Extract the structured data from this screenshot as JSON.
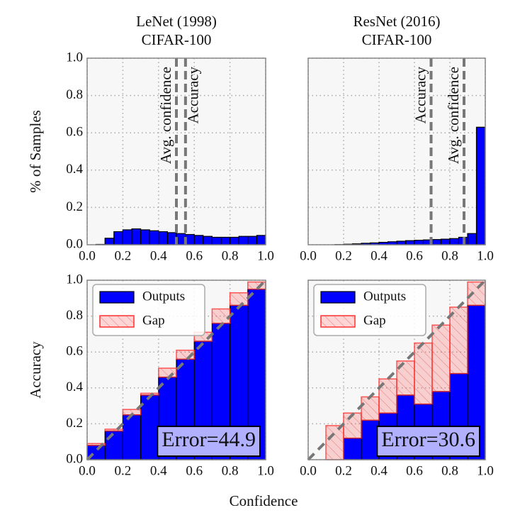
{
  "chart_data": [
    {
      "type": "histogram",
      "title": [
        "LeNet (1998)",
        "CIFAR-100"
      ],
      "ylabel": "% of Samples",
      "bins": [
        0,
        0.05,
        0.1,
        0.15,
        0.2,
        0.25,
        0.3,
        0.35,
        0.4,
        0.45,
        0.5,
        0.55,
        0.6,
        0.65,
        0.7,
        0.75,
        0.8,
        0.85,
        0.9,
        0.95,
        1
      ],
      "values": [
        0,
        0.002,
        0.035,
        0.07,
        0.08,
        0.085,
        0.08,
        0.075,
        0.07,
        0.065,
        0.06,
        0.055,
        0.05,
        0.045,
        0.04,
        0.04,
        0.04,
        0.045,
        0.045,
        0.05
      ],
      "color": "#0000ff",
      "vlines": [
        {
          "label": "Avg. confidence",
          "value": 0.5
        },
        {
          "label": "Accuracy",
          "value": 0.551
        }
      ],
      "xlim": [
        0,
        1
      ],
      "ylim": [
        0,
        1
      ],
      "xticks": [
        {
          "value": 0,
          "label": "0.0"
        },
        0.2,
        0.4,
        0.6,
        0.8,
        {
          "value": 1,
          "label": "1.0"
        }
      ],
      "yticks": [
        {
          "value": 0,
          "label": "0.0"
        },
        0.2,
        0.4,
        0.6,
        0.8,
        {
          "value": 1,
          "label": "1.0"
        }
      ],
      "show_ytick_labels": true,
      "grid": true
    },
    {
      "type": "histogram",
      "title": [
        "ResNet (2016)",
        "CIFAR-100"
      ],
      "bins": [
        0,
        0.05,
        0.1,
        0.15,
        0.2,
        0.25,
        0.3,
        0.35,
        0.4,
        0.45,
        0.5,
        0.55,
        0.6,
        0.65,
        0.7,
        0.75,
        0.8,
        0.85,
        0.9,
        0.95,
        1
      ],
      "values": [
        0,
        0,
        0,
        0.001,
        0.003,
        0.005,
        0.008,
        0.01,
        0.013,
        0.016,
        0.019,
        0.022,
        0.024,
        0.026,
        0.028,
        0.03,
        0.033,
        0.04,
        0.06,
        0.63
      ],
      "color": "#0000ff",
      "vlines": [
        {
          "label": "Accuracy",
          "value": 0.694
        },
        {
          "label": "Avg. confidence",
          "value": 0.88
        }
      ],
      "xlim": [
        0,
        1
      ],
      "ylim": [
        0,
        1
      ],
      "xticks": [
        {
          "value": 0,
          "label": "0.0"
        },
        0.2,
        0.4,
        0.6,
        0.8,
        {
          "value": 1,
          "label": "1.0"
        }
      ],
      "yticks": [
        0,
        0.2,
        0.4,
        0.6,
        0.8,
        1
      ],
      "show_ytick_labels": false,
      "grid": true
    },
    {
      "type": "stacked_histogram",
      "ylabel": "Accuracy",
      "bins": [
        0,
        0.1,
        0.2,
        0.3,
        0.4,
        0.5,
        0.6,
        0.7,
        0.8,
        0.9,
        1
      ],
      "series": [
        {
          "name": "Outputs",
          "color": "#0000ff",
          "values": [
            0.08,
            0.16,
            0.25,
            0.36,
            0.46,
            0.56,
            0.66,
            0.76,
            0.86,
            0.95
          ]
        },
        {
          "name": "Gap",
          "color": "#ff3030",
          "values": [
            0.01,
            0.01,
            0.03,
            0.01,
            0.05,
            0.05,
            0.05,
            0.08,
            0.07,
            0.04
          ]
        }
      ],
      "annotation": "Error=44.9",
      "legend": "upper left",
      "diagonal": true,
      "xlim": [
        0,
        1
      ],
      "ylim": [
        0,
        1
      ],
      "xticks": [
        {
          "value": 0,
          "label": "0.0"
        },
        0.2,
        0.4,
        0.6,
        0.8,
        {
          "value": 1,
          "label": "1.0"
        }
      ],
      "yticks": [
        {
          "value": 0,
          "label": "0.0"
        },
        0.2,
        0.4,
        0.6,
        0.8,
        {
          "value": 1,
          "label": "1.0"
        }
      ],
      "show_ytick_labels": true,
      "grid": true
    },
    {
      "type": "stacked_histogram",
      "bins": [
        0,
        0.1,
        0.2,
        0.3,
        0.4,
        0.5,
        0.6,
        0.7,
        0.8,
        0.9,
        1
      ],
      "series": [
        {
          "name": "Outputs",
          "color": "#0000ff",
          "values": [
            0,
            0,
            0.12,
            0.22,
            0.26,
            0.36,
            0.31,
            0.38,
            0.48,
            0.86
          ]
        },
        {
          "name": "Gap",
          "color": "#ff3030",
          "values": [
            0,
            0.19,
            0.14,
            0.13,
            0.19,
            0.19,
            0.34,
            0.37,
            0.37,
            0.13
          ]
        }
      ],
      "annotation": "Error=30.6",
      "legend": "upper left",
      "diagonal": true,
      "xlim": [
        0,
        1
      ],
      "ylim": [
        0,
        1
      ],
      "xticks": [
        {
          "value": 0,
          "label": "0.0"
        },
        0.2,
        0.4,
        0.6,
        0.8,
        {
          "value": 1,
          "label": "1.0"
        }
      ],
      "yticks": [
        0,
        0.2,
        0.4,
        0.6,
        0.8,
        1
      ],
      "show_ytick_labels": false,
      "grid": true
    }
  ],
  "xlabel": "Confidence"
}
